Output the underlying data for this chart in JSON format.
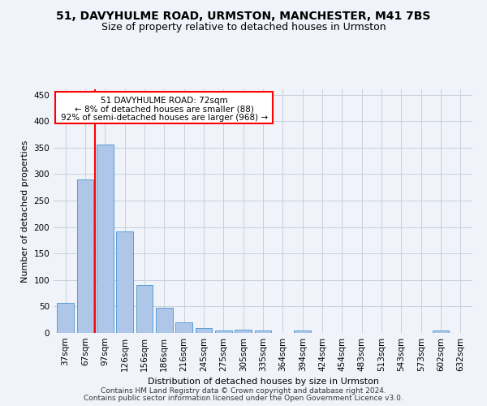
{
  "title": "51, DAVYHULME ROAD, URMSTON, MANCHESTER, M41 7BS",
  "subtitle": "Size of property relative to detached houses in Urmston",
  "xlabel": "Distribution of detached houses by size in Urmston",
  "ylabel": "Number of detached properties",
  "categories": [
    "37sqm",
    "67sqm",
    "97sqm",
    "126sqm",
    "156sqm",
    "186sqm",
    "216sqm",
    "245sqm",
    "275sqm",
    "305sqm",
    "335sqm",
    "364sqm",
    "394sqm",
    "424sqm",
    "454sqm",
    "483sqm",
    "513sqm",
    "543sqm",
    "573sqm",
    "602sqm",
    "632sqm"
  ],
  "values": [
    57,
    290,
    355,
    192,
    90,
    47,
    20,
    9,
    5,
    6,
    5,
    0,
    5,
    0,
    0,
    0,
    0,
    0,
    0,
    5,
    0
  ],
  "bar_color": "#aec6e8",
  "bar_edge_color": "#5a9fd4",
  "red_line_x": 1.5,
  "annotation_box": {
    "title": "51 DAVYHULME ROAD: 72sqm",
    "line1": "← 8% of detached houses are smaller (88)",
    "line2": "92% of semi-detached houses are larger (968) →"
  },
  "ylim": [
    0,
    460
  ],
  "yticks": [
    0,
    50,
    100,
    150,
    200,
    250,
    300,
    350,
    400,
    450
  ],
  "footnote1": "Contains HM Land Registry data © Crown copyright and database right 2024.",
  "footnote2": "Contains public sector information licensed under the Open Government Licence v3.0.",
  "background_color": "#f0f4fa",
  "grid_color": "#c8d0dc",
  "title_fontsize": 10,
  "subtitle_fontsize": 9,
  "axis_label_fontsize": 8,
  "tick_fontsize": 7.5,
  "footnote_fontsize": 6.5
}
